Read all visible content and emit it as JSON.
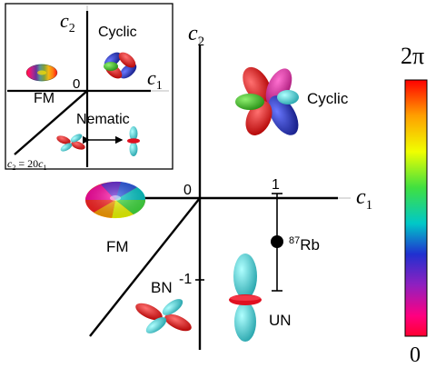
{
  "main_axes": {
    "c1_label": "c",
    "c1_sub": "1",
    "c2_label": "c",
    "c2_sub": "2",
    "origin": "0",
    "tick_pos": "1",
    "tick_neg": "-1"
  },
  "phases": {
    "fm": "FM",
    "cyclic": "Cyclic",
    "bn": "BN",
    "un": "UN"
  },
  "rb_point": {
    "mass": "87",
    "element": "Rb"
  },
  "inset": {
    "c2_label": "c",
    "c2_sub": "2",
    "c1_label": "c",
    "c1_sub": "1",
    "origin": "0",
    "fm": "FM",
    "cyclic": "Cyclic",
    "nematic": "Nematic",
    "relation_lhs": "c",
    "relation_lhs_sub": "2",
    "relation_eq": " = 20",
    "relation_rhs": "c",
    "relation_rhs_sub": "1"
  },
  "colorbar": {
    "top_label": "2π",
    "bottom_label": "0",
    "colors": [
      "#ff0000",
      "#ffa000",
      "#f0ff00",
      "#40e040",
      "#00c8c8",
      "#2030d0",
      "#9020c0",
      "#ff0080",
      "#ff0030"
    ]
  }
}
